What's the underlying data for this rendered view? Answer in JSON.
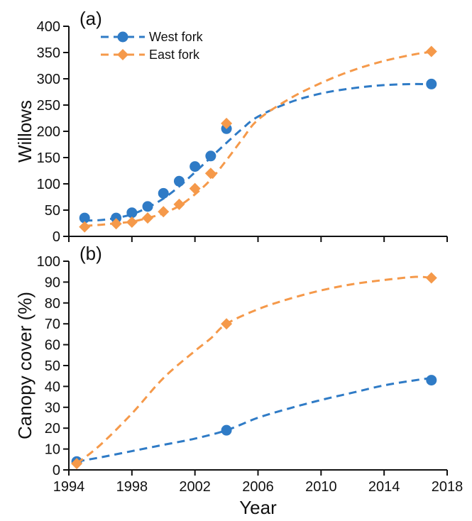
{
  "colors": {
    "west": "#2f7bc6",
    "east": "#f5994a",
    "axis": "#111111"
  },
  "chart_data": [
    {
      "type": "scatter",
      "panel_label": "(a)",
      "xlabel": "",
      "ylabel": "Willows",
      "xlim": [
        1994,
        2018
      ],
      "ylim": [
        0,
        400
      ],
      "yticks": [
        0,
        50,
        100,
        150,
        200,
        250,
        300,
        350,
        400
      ],
      "xticks": [
        1994,
        1998,
        2002,
        2006,
        2010,
        2014,
        2018
      ],
      "show_x_tick_labels": false,
      "legend": {
        "placement": "top-left"
      },
      "series": [
        {
          "name": "West fork",
          "marker": "circle",
          "color": "#2f7bc6",
          "points": [
            [
              1995,
              35
            ],
            [
              1997,
              35
            ],
            [
              1998,
              45
            ],
            [
              1999,
              57
            ],
            [
              2000,
              82
            ],
            [
              2001,
              105
            ],
            [
              2002,
              133
            ],
            [
              2003,
              153
            ],
            [
              2004,
              205
            ],
            [
              2017,
              290
            ]
          ],
          "fit": [
            [
              1995,
              30
            ],
            [
              1996,
              31
            ],
            [
              1997,
              35
            ],
            [
              1998,
              42
            ],
            [
              1999,
              55
            ],
            [
              2000,
              72
            ],
            [
              2001,
              95
            ],
            [
              2002,
              122
            ],
            [
              2003,
              150
            ],
            [
              2004,
              178
            ],
            [
              2005,
              205
            ],
            [
              2006,
              228
            ],
            [
              2008,
              255
            ],
            [
              2010,
              272
            ],
            [
              2012,
              282
            ],
            [
              2014,
              288
            ],
            [
              2016,
              290
            ],
            [
              2017,
              289
            ]
          ]
        },
        {
          "name": "East fork",
          "marker": "diamond",
          "color": "#f5994a",
          "points": [
            [
              1995,
              18
            ],
            [
              1997,
              24
            ],
            [
              1998,
              27
            ],
            [
              1999,
              35
            ],
            [
              2000,
              47
            ],
            [
              2001,
              61
            ],
            [
              2002,
              91
            ],
            [
              2003,
              120
            ],
            [
              2004,
              215
            ],
            [
              2017,
              352
            ]
          ],
          "fit": [
            [
              1995,
              20
            ],
            [
              1996,
              22
            ],
            [
              1997,
              25
            ],
            [
              1998,
              28
            ],
            [
              1999,
              35
            ],
            [
              2000,
              44
            ],
            [
              2001,
              58
            ],
            [
              2002,
              80
            ],
            [
              2003,
              108
            ],
            [
              2004,
              145
            ],
            [
              2005,
              185
            ],
            [
              2006,
              222
            ],
            [
              2008,
              262
            ],
            [
              2010,
              292
            ],
            [
              2012,
              316
            ],
            [
              2014,
              334
            ],
            [
              2016,
              347
            ],
            [
              2017,
              351
            ]
          ]
        }
      ]
    },
    {
      "type": "scatter",
      "panel_label": "(b)",
      "xlabel": "Year",
      "ylabel": "Canopy cover (%)",
      "xlim": [
        1994,
        2018
      ],
      "ylim": [
        0,
        100
      ],
      "yticks": [
        0,
        10,
        20,
        30,
        40,
        50,
        60,
        70,
        80,
        90,
        100
      ],
      "xticks": [
        1994,
        1998,
        2002,
        2006,
        2010,
        2014,
        2018
      ],
      "show_x_tick_labels": true,
      "series": [
        {
          "name": "West fork",
          "marker": "circle",
          "color": "#2f7bc6",
          "points": [
            [
              1994.5,
              4
            ],
            [
              2004,
              19
            ],
            [
              2017,
              43
            ]
          ],
          "fit": [
            [
              1994.5,
              4
            ],
            [
              1996,
              6
            ],
            [
              1998,
              9
            ],
            [
              2000,
              12
            ],
            [
              2002,
              15
            ],
            [
              2004,
              19
            ],
            [
              2006,
              25
            ],
            [
              2008,
              29.5
            ],
            [
              2010,
              33.5
            ],
            [
              2012,
              37
            ],
            [
              2014,
              40.5
            ],
            [
              2016,
              43
            ],
            [
              2017,
              44
            ]
          ]
        },
        {
          "name": "East fork",
          "marker": "diamond",
          "color": "#f5994a",
          "points": [
            [
              1994.5,
              3
            ],
            [
              2004,
              70
            ],
            [
              2017,
              92
            ]
          ],
          "fit": [
            [
              1994.5,
              3
            ],
            [
              1996,
              12
            ],
            [
              1998,
              27
            ],
            [
              2000,
              44
            ],
            [
              2002,
              57
            ],
            [
              2003,
              63
            ],
            [
              2004,
              70
            ],
            [
              2006,
              77
            ],
            [
              2008,
              82
            ],
            [
              2010,
              86
            ],
            [
              2012,
              89
            ],
            [
              2014,
              91
            ],
            [
              2016,
              92.5
            ],
            [
              2017,
              92
            ]
          ]
        }
      ]
    }
  ]
}
